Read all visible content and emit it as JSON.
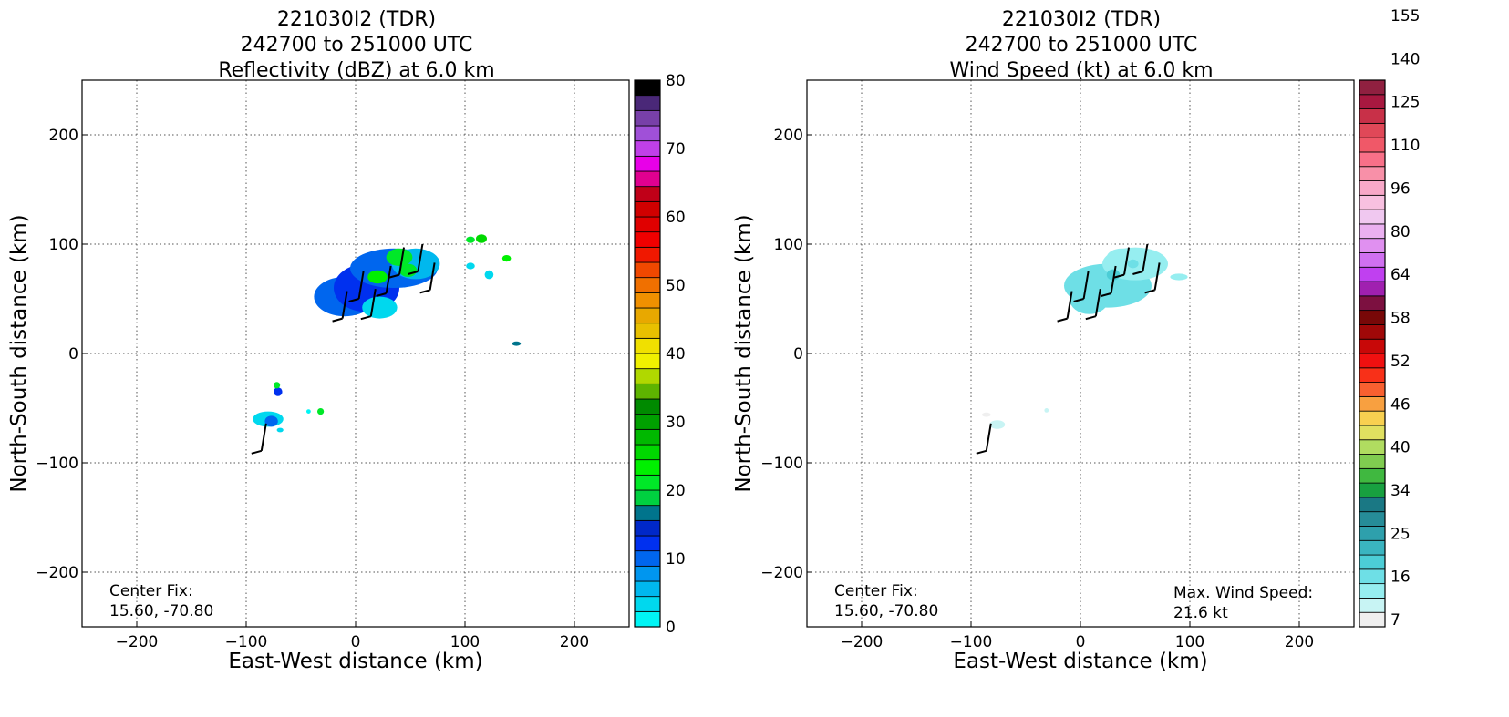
{
  "chart_data": [
    {
      "type": "heatmap",
      "title_lines": [
        "221030I2 (TDR)",
        "242700 to 251000 UTC",
        "Reflectivity (dBZ) at 6.0 km"
      ],
      "xlabel": "East-West distance (km)",
      "ylabel": "North-South distance (km)",
      "xlim": [
        -250,
        250
      ],
      "ylim": [
        -250,
        250
      ],
      "xticks": [
        -200,
        -100,
        0,
        100,
        200
      ],
      "yticks": [
        -200,
        -100,
        0,
        100,
        200
      ],
      "grid": true,
      "annotations": [
        {
          "text_lines": [
            "Center Fix:",
            "15.60, -70.80"
          ],
          "location": "bottom-left"
        }
      ],
      "colorbar": {
        "min": 0,
        "max": 80,
        "tick_labels": [
          "0",
          "10",
          "20",
          "30",
          "40",
          "50",
          "60",
          "70",
          "80"
        ],
        "tick_values": [
          0,
          10,
          20,
          30,
          40,
          50,
          60,
          70,
          80
        ],
        "colors": [
          "#00f5f5",
          "#00d8ee",
          "#00b8ee",
          "#0096ef",
          "#0066ee",
          "#0030ef",
          "#0028c8",
          "#00748c",
          "#00d040",
          "#00e828",
          "#00f000",
          "#00d800",
          "#00b800",
          "#00a000",
          "#008a00",
          "#5eb400",
          "#b0d800",
          "#f0f000",
          "#f0e000",
          "#e8c000",
          "#e8a800",
          "#f09000",
          "#f07000",
          "#f04800",
          "#f01800",
          "#f00000",
          "#e00000",
          "#d00000",
          "#c00018",
          "#e00090",
          "#e800e8",
          "#c040e8",
          "#a050d8",
          "#7840a8",
          "#4a2878",
          "#000000"
        ]
      },
      "cells": [
        {
          "x": -10,
          "y": 52,
          "rx": 28,
          "ry": 18,
          "value": 10
        },
        {
          "x": 10,
          "y": 60,
          "rx": 30,
          "ry": 22,
          "value": 12
        },
        {
          "x": 35,
          "y": 78,
          "rx": 40,
          "ry": 18,
          "value": 9
        },
        {
          "x": 55,
          "y": 82,
          "rx": 22,
          "ry": 14,
          "value": 6
        },
        {
          "x": 22,
          "y": 42,
          "rx": 16,
          "ry": 10,
          "value": 4
        },
        {
          "x": 40,
          "y": 88,
          "rx": 12,
          "ry": 8,
          "value": 22
        },
        {
          "x": 20,
          "y": 70,
          "rx": 9,
          "ry": 6,
          "value": 24
        },
        {
          "x": 48,
          "y": 76,
          "rx": 8,
          "ry": 6,
          "value": 21
        },
        {
          "x": 105,
          "y": 104,
          "rx": 4,
          "ry": 3,
          "value": 22
        },
        {
          "x": 115,
          "y": 105,
          "rx": 5,
          "ry": 4,
          "value": 26
        },
        {
          "x": 105,
          "y": 80,
          "rx": 4,
          "ry": 3,
          "value": 4
        },
        {
          "x": 122,
          "y": 72,
          "rx": 4,
          "ry": 4,
          "value": 3
        },
        {
          "x": 138,
          "y": 87,
          "rx": 4,
          "ry": 3,
          "value": 24
        },
        {
          "x": 147,
          "y": 9,
          "rx": 4,
          "ry": 2,
          "value": 16
        },
        {
          "x": -80,
          "y": -60,
          "rx": 14,
          "ry": 7,
          "value": 3
        },
        {
          "x": -77,
          "y": -62,
          "rx": 6,
          "ry": 5,
          "value": 10
        },
        {
          "x": -71,
          "y": -35,
          "rx": 4,
          "ry": 4,
          "value": 12
        },
        {
          "x": -72,
          "y": -29,
          "rx": 3,
          "ry": 3,
          "value": 22
        },
        {
          "x": -32,
          "y": -53,
          "rx": 3,
          "ry": 3,
          "value": 22
        },
        {
          "x": -43,
          "y": -53,
          "rx": 2,
          "ry": 2,
          "value": 2
        },
        {
          "x": -69,
          "y": -70,
          "rx": 3,
          "ry": 2,
          "value": 3
        }
      ],
      "barbs": [
        {
          "x": -12,
          "y": 32
        },
        {
          "x": 3,
          "y": 50
        },
        {
          "x": 14,
          "y": 34
        },
        {
          "x": 28,
          "y": 55
        },
        {
          "x": 40,
          "y": 72
        },
        {
          "x": 57,
          "y": 75
        },
        {
          "x": 68,
          "y": 58
        },
        {
          "x": -86,
          "y": -89
        }
      ]
    },
    {
      "type": "heatmap",
      "title_lines": [
        "221030I2 (TDR)",
        "242700 to 251000 UTC",
        "Wind Speed (kt) at 6.0 km"
      ],
      "xlabel": "East-West distance (km)",
      "ylabel": "North-South distance (km)",
      "xlim": [
        -250,
        250
      ],
      "ylim": [
        -250,
        250
      ],
      "xticks": [
        -200,
        -100,
        0,
        100,
        200
      ],
      "yticks": [
        -200,
        -100,
        0,
        100,
        200
      ],
      "grid": true,
      "annotations": [
        {
          "text_lines": [
            "Center Fix:",
            "15.60, -70.80"
          ],
          "location": "bottom-left"
        },
        {
          "text_lines": [
            "Max. Wind Speed:",
            "21.6 kt"
          ],
          "location": "bottom-right"
        }
      ],
      "colorbar": {
        "min": 4,
        "max": 160,
        "tick_labels": [
          "7",
          "16",
          "25",
          "34",
          "40",
          "46",
          "52",
          "58",
          "64",
          "80",
          "96",
          "110",
          "125",
          "140",
          "155"
        ],
        "colors": [
          "#efefef",
          "#c8f4f4",
          "#96eef0",
          "#6edfe6",
          "#4ccdd6",
          "#3ab4c0",
          "#2ea0ac",
          "#268c98",
          "#1a7884",
          "#18a040",
          "#40b840",
          "#80cc50",
          "#b0dc60",
          "#e0e060",
          "#f8d050",
          "#f8a040",
          "#f86030",
          "#f83018",
          "#f01010",
          "#c80808",
          "#a00808",
          "#780808",
          "#7c1040",
          "#a020b0",
          "#c040f0",
          "#d070f0",
          "#e090f0",
          "#eab0f0",
          "#f0c8f0",
          "#f8c0e0",
          "#f8a8c8",
          "#f890a8",
          "#f87088",
          "#f05868",
          "#e04858",
          "#c83048",
          "#a81840",
          "#902040"
        ]
      },
      "cells": [
        {
          "x": 25,
          "y": 62,
          "rx": 40,
          "ry": 20,
          "value": 17
        },
        {
          "x": 50,
          "y": 82,
          "rx": 30,
          "ry": 15,
          "value": 16
        },
        {
          "x": 8,
          "y": 50,
          "rx": 18,
          "ry": 14,
          "value": 18
        },
        {
          "x": 38,
          "y": 88,
          "rx": 14,
          "ry": 8,
          "value": 14
        },
        {
          "x": 30,
          "y": 72,
          "rx": 6,
          "ry": 5,
          "value": 21
        },
        {
          "x": 48,
          "y": 82,
          "rx": 5,
          "ry": 4,
          "value": 20
        },
        {
          "x": 90,
          "y": 70,
          "rx": 8,
          "ry": 3,
          "value": 13
        },
        {
          "x": -76,
          "y": -65,
          "rx": 7,
          "ry": 4,
          "value": 10
        },
        {
          "x": -86,
          "y": -56,
          "rx": 4,
          "ry": 2,
          "value": 6
        },
        {
          "x": -31,
          "y": -52,
          "rx": 2,
          "ry": 2,
          "value": 12
        }
      ],
      "barbs": [
        {
          "x": -12,
          "y": 32
        },
        {
          "x": 3,
          "y": 50
        },
        {
          "x": 14,
          "y": 34
        },
        {
          "x": 28,
          "y": 55
        },
        {
          "x": 40,
          "y": 72
        },
        {
          "x": 57,
          "y": 75
        },
        {
          "x": 68,
          "y": 58
        },
        {
          "x": -86,
          "y": -89
        }
      ]
    }
  ]
}
